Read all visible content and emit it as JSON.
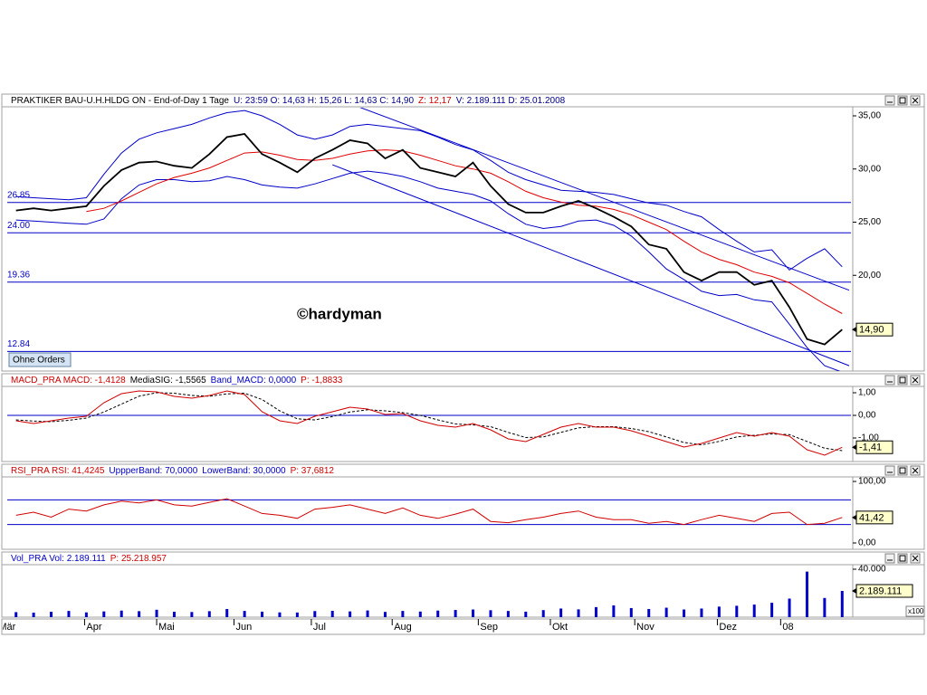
{
  "chart_data": [
    {
      "type": "line",
      "header": [
        {
          "text": "PRAKTIKER BAU-U.H.HLDG ON - End-of-Day 1 Tage",
          "color": "#000000"
        },
        {
          "text": "U: 23:59  O: 14,63  H: 15,26  L: 14,63  C: 14,90",
          "color": "#00008b"
        },
        {
          "text": "Z: 12,17",
          "color": "#d00000"
        },
        {
          "text": "V: 2.189.111  D: 25.01.2008",
          "color": "#00008b"
        }
      ],
      "xlim": [
        -0.5,
        47.5
      ],
      "ylim": [
        11,
        35.85
      ],
      "yticks": [
        {
          "value": 35,
          "label": "35,00"
        },
        {
          "value": 30,
          "label": "30,00"
        },
        {
          "value": 25,
          "label": "25,00"
        },
        {
          "value": 20,
          "label": "20,00"
        }
      ],
      "hlines": [
        26.85,
        {
          "value": 24,
          "label": "24.00"
        },
        19.36,
        12.84
      ],
      "hline_color": "#0000c8",
      "trendlines": [
        {
          "x": [
            19.4,
            47.4
          ],
          "values": [
            35.9,
            18.6
          ],
          "color": "#0000c8"
        },
        {
          "x": [
            18.0,
            47.4
          ],
          "values": [
            30.4,
            11.5
          ],
          "color": "#0000c8"
        }
      ],
      "series": [
        {
          "color": "#0000c8",
          "values": [
            27.4,
            27.3,
            27.2,
            27.1,
            27.3,
            29.5,
            31.5,
            32.8,
            33.4,
            33.8,
            34.2,
            34.8,
            35.3,
            35.5,
            35.0,
            34.2,
            33.2,
            32.8,
            33.2,
            34.0,
            34.2,
            34.0,
            33.8,
            33.6,
            33.0,
            32.3,
            31.8,
            30.8,
            29.7,
            29.0,
            28.5,
            28.0,
            27.9,
            27.8,
            27.6,
            27.2,
            26.8,
            26.6,
            26.0,
            25.5,
            24.3,
            23.2,
            22.2,
            22.4,
            20.5,
            21.6,
            22.5,
            20.8
          ]
        },
        {
          "color": "#0000c8",
          "values": [
            25.2,
            25.1,
            25.0,
            24.9,
            24.8,
            25.3,
            27.2,
            28.5,
            29.0,
            29.0,
            28.8,
            28.9,
            29.3,
            29.0,
            28.5,
            28.3,
            28.2,
            28.6,
            29.1,
            29.6,
            29.8,
            29.6,
            29.3,
            28.8,
            28.2,
            27.9,
            27.6,
            27.0,
            25.8,
            24.8,
            24.4,
            24.6,
            25.1,
            25.2,
            24.7,
            23.7,
            22.2,
            20.6,
            19.6,
            18.5,
            18.1,
            18.2,
            17.7,
            17.5,
            15.4,
            13.2,
            11.5,
            10.9
          ]
        },
        {
          "color": "#e00000",
          "values": [
            null,
            null,
            null,
            null,
            26.0,
            26.3,
            27.0,
            27.8,
            28.6,
            29.2,
            29.6,
            30.1,
            30.8,
            31.5,
            31.6,
            31.3,
            30.9,
            30.8,
            31.0,
            31.4,
            31.7,
            31.8,
            31.7,
            31.3,
            30.8,
            30.3,
            30.0,
            29.6,
            28.8,
            27.9,
            27.3,
            26.9,
            26.6,
            26.5,
            26.2,
            25.7,
            25.0,
            24.3,
            23.2,
            22.2,
            21.5,
            21.0,
            20.3,
            19.9,
            19.3,
            18.3,
            17.3,
            16.4
          ]
        },
        {
          "color": "#000000",
          "values": [
            26.1,
            26.3,
            26.1,
            26.3,
            26.5,
            28.4,
            29.9,
            30.6,
            30.7,
            30.3,
            30.1,
            31.4,
            33.0,
            33.3,
            31.4,
            30.6,
            29.7,
            31.0,
            31.8,
            32.7,
            32.4,
            31.0,
            31.8,
            30.1,
            29.7,
            29.3,
            30.6,
            28.4,
            26.7,
            25.9,
            25.9,
            26.5,
            27.0,
            26.3,
            25.5,
            24.6,
            22.9,
            22.5,
            20.3,
            19.5,
            20.3,
            20.3,
            19.1,
            19.5,
            17.0,
            14.0,
            13.5,
            14.9
          ]
        }
      ],
      "last": {
        "value": 14.9,
        "label": "14,90"
      },
      "annotation": "©hardyman",
      "button": "Ohne Orders"
    },
    {
      "type": "line",
      "header": [
        {
          "text": "MACD_PRA  MACD: -1,4128",
          "color": "#d00000"
        },
        {
          "text": "MediaSIG: -1,5565",
          "color": "#000000"
        },
        {
          "text": "Band_MACD: 0,0000",
          "color": "#0000c8"
        },
        {
          "text": "P: -1,8833",
          "color": "#d00000"
        }
      ],
      "xlim": [
        -0.5,
        47.5
      ],
      "ylim": [
        -2.04,
        1.28
      ],
      "yticks": [
        {
          "value": 1,
          "label": "1,00"
        },
        {
          "value": 0,
          "label": "0,00"
        },
        {
          "value": -1,
          "label": "-1,00"
        }
      ],
      "hlines": [
        0
      ],
      "hline_color": "#0000c8",
      "series": [
        {
          "color": "#000000",
          "style": "dashed",
          "values": [
            -0.2,
            -0.25,
            -0.28,
            -0.22,
            -0.12,
            0.15,
            0.5,
            0.85,
            1.0,
            0.98,
            0.88,
            0.85,
            0.95,
            0.98,
            0.7,
            0.2,
            -0.15,
            -0.2,
            -0.05,
            0.15,
            0.25,
            0.2,
            0.12,
            0.0,
            -0.2,
            -0.38,
            -0.42,
            -0.5,
            -0.75,
            -0.98,
            -0.95,
            -0.75,
            -0.55,
            -0.5,
            -0.5,
            -0.58,
            -0.72,
            -0.95,
            -1.2,
            -1.3,
            -1.15,
            -0.95,
            -0.88,
            -0.82,
            -0.85,
            -1.15,
            -1.45,
            -1.56
          ]
        },
        {
          "color": "#d00000",
          "values": [
            -0.24,
            -0.36,
            -0.24,
            -0.12,
            -0.04,
            0.56,
            0.96,
            1.08,
            1.04,
            0.84,
            0.76,
            0.88,
            1.08,
            0.92,
            0.16,
            -0.24,
            -0.36,
            -0.04,
            0.16,
            0.36,
            0.28,
            0.04,
            0.08,
            -0.24,
            -0.44,
            -0.52,
            -0.36,
            -0.64,
            -1.04,
            -1.16,
            -0.84,
            -0.52,
            -0.36,
            -0.52,
            -0.52,
            -0.68,
            -0.92,
            -1.16,
            -1.4,
            -1.24,
            -1.0,
            -0.76,
            -0.92,
            -0.76,
            -0.92,
            -1.52,
            -1.76,
            -1.41
          ]
        }
      ],
      "last": {
        "value": -1.41,
        "label": "-1,41"
      }
    },
    {
      "type": "line",
      "header": [
        {
          "text": "RSI_PRA  RSI: 41,4245",
          "color": "#d00000"
        },
        {
          "text": "UppperBand: 70,0000",
          "color": "#0000c8"
        },
        {
          "text": "LowerBand: 30,0000",
          "color": "#0000c8"
        },
        {
          "text": "P: 37,6812",
          "color": "#d00000"
        }
      ],
      "xlim": [
        -0.5,
        47.5
      ],
      "ylim": [
        -10.3,
        107.4
      ],
      "yticks": [
        {
          "value": 100,
          "label": "100,00"
        },
        {
          "value": 0,
          "label": "0,00"
        }
      ],
      "hlines": [
        70,
        30
      ],
      "hline_color": "#0000c8",
      "series": [
        {
          "color": "#d00000",
          "values": [
            45,
            50,
            42,
            55,
            52,
            62,
            68,
            65,
            70,
            62,
            60,
            66,
            72,
            60,
            48,
            45,
            40,
            55,
            58,
            62,
            55,
            48,
            57,
            45,
            40,
            47,
            55,
            35,
            33,
            38,
            42,
            48,
            52,
            42,
            38,
            38,
            32,
            35,
            30,
            38,
            45,
            40,
            35,
            48,
            50,
            30,
            32,
            41.42
          ]
        }
      ],
      "last": {
        "value": 41.42,
        "label": "41,42"
      }
    },
    {
      "type": "bar",
      "header": [
        {
          "text": "Vol_PRA  Vol: 2.189.111",
          "color": "#0000c8"
        },
        {
          "text": "P: 25.218.957",
          "color": "#d00000"
        }
      ],
      "xlim": [
        -0.5,
        47.5
      ],
      "ylim": [
        0,
        43770
      ],
      "yticks": [
        {
          "value": 40000,
          "label": "40.000"
        }
      ],
      "color": "#0000c8",
      "values": [
        4200,
        3800,
        4500,
        5200,
        4000,
        4800,
        5500,
        5000,
        6200,
        4500,
        4300,
        5000,
        6800,
        5200,
        4600,
        4000,
        3900,
        5100,
        5300,
        4800,
        5600,
        4400,
        5200,
        4700,
        5500,
        6000,
        6400,
        5800,
        5200,
        4600,
        5900,
        7200,
        6500,
        8400,
        9800,
        7600,
        6800,
        7900,
        6400,
        7200,
        8800,
        9500,
        10500,
        12000,
        15500,
        38000,
        16000,
        21891.11
      ],
      "last": {
        "value": 21891.11,
        "label": "2.189.111"
      },
      "scale_note": "x100",
      "xticks": [
        {
          "value": -1.1,
          "label": "Mär"
        },
        {
          "value": 3.9,
          "label": "Apr"
        },
        {
          "value": 8.0,
          "label": "Mai"
        },
        {
          "value": 12.4,
          "label": "Jun"
        },
        {
          "value": 16.8,
          "label": "Jul"
        },
        {
          "value": 21.4,
          "label": "Aug"
        },
        {
          "value": 26.3,
          "label": "Sep"
        },
        {
          "value": 30.4,
          "label": "Okt"
        },
        {
          "value": 35.2,
          "label": "Nov"
        },
        {
          "value": 39.9,
          "label": "Dez"
        },
        {
          "value": 43.5,
          "label": "08"
        }
      ]
    }
  ]
}
